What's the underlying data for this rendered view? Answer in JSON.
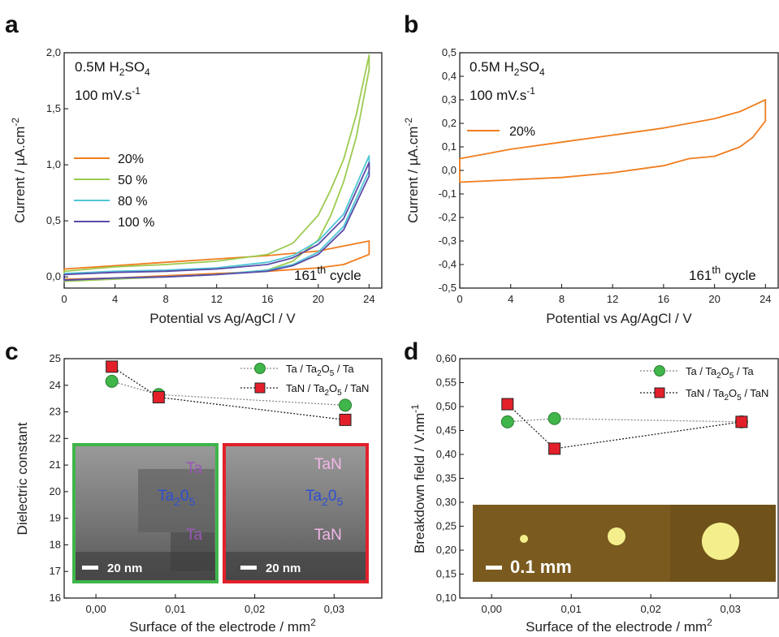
{
  "figure": {
    "panel_labels": [
      "a",
      "b",
      "c",
      "d"
    ]
  },
  "chart_data": [
    {
      "id": "a",
      "type": "line",
      "xlabel": "Potential vs Ag/AgCl / V",
      "ylabel": "Current / µA.cm",
      "ylabel_sup": "-2",
      "xlim": [
        0,
        25
      ],
      "ylim": [
        -0.1,
        2.0
      ],
      "xticks": [
        "0",
        "4",
        "8",
        "12",
        "16",
        "20",
        "24"
      ],
      "yticks": [
        "0,0",
        "0,5",
        "1,0",
        "1,5",
        "2,0"
      ],
      "annotations": {
        "electrolyte": "0.5M H",
        "electrolyte_sub": "2",
        "electrolyte_end": "SO",
        "electrolyte_sub2": "4",
        "scan_rate": "100 mV.s",
        "scan_rate_sup": "-1",
        "cycle_pre": "161",
        "cycle_sup": "th",
        "cycle_post": " cycle"
      },
      "legend_position": "left-middle",
      "series": [
        {
          "name": "20%",
          "color": "#f07d1e",
          "upper": [
            [
              0,
              0.07
            ],
            [
              4,
              0.1
            ],
            [
              8,
              0.13
            ],
            [
              12,
              0.16
            ],
            [
              16,
              0.19
            ],
            [
              20,
              0.23
            ],
            [
              24,
              0.32
            ]
          ],
          "lower": [
            [
              24,
              0.2
            ],
            [
              22,
              0.11
            ],
            [
              20,
              0.08
            ],
            [
              16,
              0.05
            ],
            [
              12,
              0.03
            ],
            [
              8,
              0.01
            ],
            [
              4,
              -0.01
            ],
            [
              0,
              -0.02
            ]
          ]
        },
        {
          "name": "50 %",
          "color": "#9ccb50",
          "upper": [
            [
              0,
              0.05
            ],
            [
              4,
              0.09
            ],
            [
              8,
              0.11
            ],
            [
              12,
              0.14
            ],
            [
              16,
              0.2
            ],
            [
              18,
              0.3
            ],
            [
              20,
              0.55
            ],
            [
              21,
              0.78
            ],
            [
              22,
              1.05
            ],
            [
              23,
              1.45
            ],
            [
              24,
              1.98
            ]
          ],
          "lower": [
            [
              24,
              1.85
            ],
            [
              23,
              1.25
            ],
            [
              22,
              0.85
            ],
            [
              21,
              0.55
            ],
            [
              20,
              0.33
            ],
            [
              18,
              0.14
            ],
            [
              16,
              0.06
            ],
            [
              12,
              0.02
            ],
            [
              8,
              0.0
            ],
            [
              4,
              -0.02
            ],
            [
              0,
              -0.04
            ]
          ]
        },
        {
          "name": "80 %",
          "color": "#4fc7d7",
          "upper": [
            [
              0,
              0.03
            ],
            [
              4,
              0.05
            ],
            [
              8,
              0.06
            ],
            [
              12,
              0.08
            ],
            [
              16,
              0.13
            ],
            [
              18,
              0.19
            ],
            [
              20,
              0.32
            ],
            [
              22,
              0.56
            ],
            [
              24,
              1.08
            ]
          ],
          "lower": [
            [
              24,
              0.95
            ],
            [
              22,
              0.45
            ],
            [
              20,
              0.22
            ],
            [
              18,
              0.11
            ],
            [
              16,
              0.06
            ],
            [
              12,
              0.02
            ],
            [
              8,
              0.0
            ],
            [
              4,
              -0.01
            ],
            [
              0,
              -0.03
            ]
          ]
        },
        {
          "name": "100 %",
          "color": "#5b4aa8",
          "upper": [
            [
              0,
              0.02
            ],
            [
              4,
              0.04
            ],
            [
              8,
              0.05
            ],
            [
              12,
              0.07
            ],
            [
              16,
              0.11
            ],
            [
              18,
              0.17
            ],
            [
              20,
              0.29
            ],
            [
              22,
              0.52
            ],
            [
              24,
              1.02
            ]
          ],
          "lower": [
            [
              24,
              0.9
            ],
            [
              22,
              0.42
            ],
            [
              20,
              0.2
            ],
            [
              18,
              0.1
            ],
            [
              16,
              0.05
            ],
            [
              12,
              0.02
            ],
            [
              8,
              0.0
            ],
            [
              4,
              -0.01
            ],
            [
              0,
              -0.03
            ]
          ]
        }
      ]
    },
    {
      "id": "b",
      "type": "line",
      "xlabel": "Potential vs Ag/AgCl / V",
      "ylabel": "Current / µA.cm",
      "ylabel_sup": "-2",
      "xlim": [
        0,
        25
      ],
      "ylim": [
        -0.5,
        0.5
      ],
      "xticks": [
        "0",
        "4",
        "8",
        "12",
        "16",
        "20",
        "24"
      ],
      "yticks": [
        "-0,5",
        "-0,4",
        "-0,3",
        "-0,2",
        "-0,1",
        "0,0",
        "0,1",
        "0,2",
        "0,3",
        "0,4",
        "0,5"
      ],
      "annotations": {
        "electrolyte": "0.5M H",
        "electrolyte_sub": "2",
        "electrolyte_end": "SO",
        "electrolyte_sub2": "4",
        "scan_rate": "100 mV.s",
        "scan_rate_sup": "-1",
        "cycle_pre": "161",
        "cycle_sup": "th",
        "cycle_post": " cycle"
      },
      "legend_position": "upper-left",
      "series": [
        {
          "name": "20%",
          "color": "#f07d1e",
          "upper": [
            [
              0,
              0.05
            ],
            [
              2,
              0.07
            ],
            [
              4,
              0.09
            ],
            [
              8,
              0.12
            ],
            [
              12,
              0.15
            ],
            [
              16,
              0.18
            ],
            [
              20,
              0.22
            ],
            [
              22,
              0.25
            ],
            [
              24,
              0.3
            ]
          ],
          "lower": [
            [
              24,
              0.21
            ],
            [
              23,
              0.14
            ],
            [
              22,
              0.1
            ],
            [
              20,
              0.06
            ],
            [
              18,
              0.05
            ],
            [
              16,
              0.02
            ],
            [
              12,
              -0.01
            ],
            [
              8,
              -0.03
            ],
            [
              4,
              -0.04
            ],
            [
              0,
              -0.05
            ]
          ]
        }
      ]
    },
    {
      "id": "c",
      "type": "scatter",
      "xlabel": "Surface of the electrode / mm",
      "xlabel_sup": "2",
      "ylabel": "Dielectric constant",
      "xlim": [
        -0.004,
        0.036
      ],
      "ylim": [
        16,
        25
      ],
      "xticks": [
        "0,00",
        "0,01",
        "0,02",
        "0,03"
      ],
      "yticks": [
        "16",
        "17",
        "18",
        "19",
        "20",
        "21",
        "22",
        "23",
        "24",
        "25"
      ],
      "legend_position": "top-right",
      "series": [
        {
          "name": "Ta / Ta",
          "name_sub": "2",
          "name_mid": "O",
          "name_sub2": "5",
          "name_end": " / Ta",
          "marker": "circle",
          "color": "#3fb54a",
          "x": [
            0.002,
            0.0079,
            0.0314
          ],
          "y": [
            24.15,
            23.65,
            23.25
          ]
        },
        {
          "name": "TaN / Ta",
          "name_sub": "2",
          "name_mid": "O",
          "name_sub2": "5",
          "name_end": " / TaN",
          "marker": "square",
          "color": "#e3202a",
          "x": [
            0.002,
            0.0079,
            0.0314
          ],
          "y": [
            24.7,
            23.55,
            22.7
          ]
        }
      ],
      "insets": [
        {
          "border": "#3fb54a",
          "top": "Ta",
          "mid": "Ta",
          "mid_sub": "2",
          "mid_end": "0",
          "mid_sub2": "5",
          "bottom": "Ta",
          "scale": "20 nm",
          "label_color": "#9b57b8"
        },
        {
          "border": "#e3202a",
          "top": "TaN",
          "mid": "Ta",
          "mid_sub": "2",
          "mid_end": "0",
          "mid_sub2": "5",
          "bottom": "TaN",
          "scale": "20 nm",
          "label_color": "#f2b8e8"
        }
      ]
    },
    {
      "id": "d",
      "type": "scatter",
      "xlabel": "Surface of the electrode / mm",
      "xlabel_sup": "2",
      "ylabel": "Breakdown field / V.nm",
      "ylabel_sup": "-1",
      "xlim": [
        -0.004,
        0.036
      ],
      "ylim": [
        0.1,
        0.6
      ],
      "xticks": [
        "0,00",
        "0,01",
        "0,02",
        "0,03"
      ],
      "yticks": [
        "0,10",
        "0,15",
        "0,20",
        "0,25",
        "0,30",
        "0,35",
        "0,40",
        "0,45",
        "0,50",
        "0,55",
        "0,60"
      ],
      "legend_position": "top-right",
      "series": [
        {
          "name": "Ta / Ta",
          "name_sub": "2",
          "name_mid": "O",
          "name_sub2": "5",
          "name_end": " / Ta",
          "marker": "circle",
          "color": "#3fb54a",
          "x": [
            0.002,
            0.0079,
            0.0314
          ],
          "y": [
            0.468,
            0.475,
            0.468
          ]
        },
        {
          "name": "TaN / Ta",
          "name_sub": "2",
          "name_mid": "O",
          "name_sub2": "5",
          "name_end": " / TaN",
          "marker": "square",
          "color": "#e3202a",
          "x": [
            0.002,
            0.0079,
            0.0314
          ],
          "y": [
            0.505,
            0.412,
            0.468
          ]
        }
      ],
      "inset": {
        "scale": "0.1 mm",
        "bg": "#7a5a1e",
        "dot_color": "#f4ef8c"
      }
    }
  ]
}
